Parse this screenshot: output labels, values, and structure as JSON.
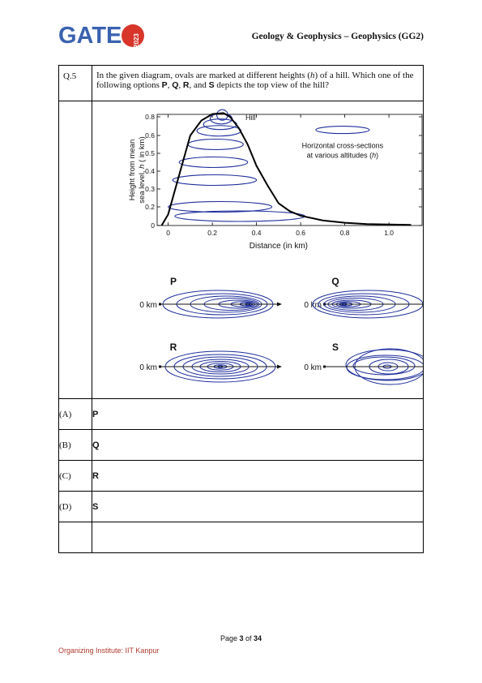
{
  "header": {
    "logo_text": "GATE",
    "logo_year": "2023",
    "paper_title": "Geology & Geophysics – Geophysics (GG2)"
  },
  "question": {
    "number": "Q.5",
    "text_part1": "In the given diagram, ovals are marked at different heights (",
    "text_h": "h",
    "text_part2": ") of a hill. Which one of the following options ",
    "P": "P",
    "sep1": ", ",
    "Q": "Q",
    "sep2": ", ",
    "R": "R",
    "sep3": ", and ",
    "S": "S",
    "text_part3": " depicts the top view of the hill?"
  },
  "chart_data": {
    "type": "line",
    "hill_label": "Hill",
    "legend_label_1": "Horizontal cross-sections",
    "legend_label_2": "at various altitudes (",
    "legend_label_h": "h",
    "legend_label_3": ")",
    "ylabel_1": "Height from mean",
    "ylabel_2": "sea level, ",
    "ylabel_h": "h",
    "ylabel_3": " ( in km)",
    "xlabel": "Distance (in km)",
    "x_ticks": [
      "0",
      "0.2",
      "0.4",
      "0.6",
      "0.8",
      "1.0"
    ],
    "y_ticks": [
      "0",
      "0.2",
      "0.3",
      "0.4",
      "0.5",
      "0.6",
      "0.8"
    ],
    "xlim": [
      -0.05,
      1.15
    ],
    "ylim": [
      0,
      0.85
    ],
    "curve": [
      [
        -0.03,
        0.0
      ],
      [
        0.0,
        0.12
      ],
      [
        0.05,
        0.38
      ],
      [
        0.1,
        0.6
      ],
      [
        0.15,
        0.76
      ],
      [
        0.2,
        0.83
      ],
      [
        0.25,
        0.84
      ],
      [
        0.28,
        0.8
      ],
      [
        0.32,
        0.68
      ],
      [
        0.36,
        0.55
      ],
      [
        0.4,
        0.43
      ],
      [
        0.45,
        0.32
      ],
      [
        0.5,
        0.22
      ],
      [
        0.55,
        0.155
      ],
      [
        0.6,
        0.105
      ],
      [
        0.7,
        0.055
      ],
      [
        0.8,
        0.03
      ],
      [
        0.9,
        0.016
      ],
      [
        1.0,
        0.01
      ],
      [
        1.1,
        0.006
      ]
    ],
    "cross_sections": [
      {
        "h": 0.1,
        "x_start": 0.03,
        "x_end": 0.62
      },
      {
        "h": 0.2,
        "x_start": 0.0,
        "x_end": 0.47
      },
      {
        "h": 0.35,
        "x_start": 0.02,
        "x_end": 0.4
      },
      {
        "h": 0.45,
        "x_start": 0.05,
        "x_end": 0.36
      },
      {
        "h": 0.55,
        "x_start": 0.09,
        "x_end": 0.34
      },
      {
        "h": 0.65,
        "x_start": 0.13,
        "x_end": 0.33
      },
      {
        "h": 0.72,
        "x_start": 0.16,
        "x_end": 0.31
      },
      {
        "h": 0.78,
        "x_start": 0.19,
        "x_end": 0.29
      },
      {
        "h": 0.82,
        "x_start": 0.22,
        "x_end": 0.27
      }
    ],
    "colors": {
      "curve": "#000000",
      "ovals": "#1f2f9c"
    }
  },
  "options_figure": {
    "zero_label": "0 km",
    "P": "P",
    "Q": "Q",
    "R": "R",
    "S": "S"
  },
  "options": [
    {
      "label": "(A)",
      "text": "P"
    },
    {
      "label": "(B)",
      "text": "Q"
    },
    {
      "label": "(C)",
      "text": "R"
    },
    {
      "label": "(D)",
      "text": "S"
    }
  ],
  "footer": {
    "page_prefix": "Page ",
    "page_current": "3",
    "page_of": " of ",
    "page_total": "34",
    "organizer": "Organizing Institute: IIT Kanpur"
  }
}
